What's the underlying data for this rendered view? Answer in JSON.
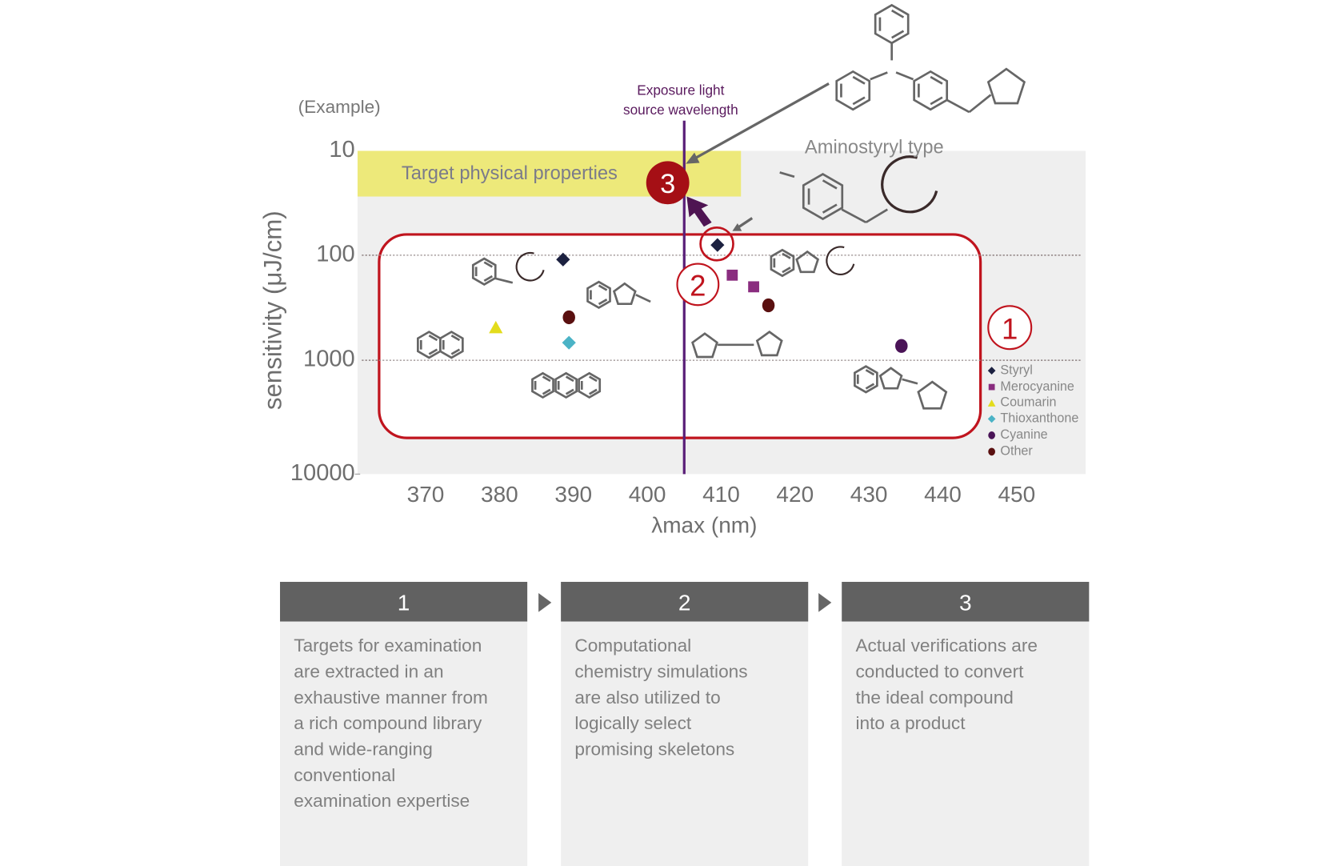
{
  "header": {
    "example_label": "(Example)"
  },
  "chart_data": {
    "type": "scatter",
    "title": "",
    "xlabel": "λmax (nm)",
    "ylabel": "sensitivity (μJ/cm)",
    "x_ticks": [
      "370",
      "380",
      "390",
      "400",
      "410",
      "420",
      "430",
      "440",
      "450"
    ],
    "y_ticks": [
      "10",
      "100",
      "1000",
      "10000"
    ],
    "y_scale": "log",
    "y_inverted": true,
    "ylim": [
      10,
      10000
    ],
    "grid": "dotted horizontal lines at 100 and 1000",
    "legend_position": "right",
    "series": [
      {
        "name": "Styryl",
        "marker": "diamond",
        "color": "#1c2140",
        "points": [
          [
            388.6,
            110
          ],
          [
            409.5,
            80
          ]
        ]
      },
      {
        "name": "Merocyanine",
        "marker": "square",
        "color": "#8a2d7f",
        "points": [
          [
            411.5,
            155
          ],
          [
            414.4,
            200
          ]
        ]
      },
      {
        "name": "Coumarin",
        "marker": "triangle",
        "color": "#e3dc1c",
        "points": [
          [
            379.5,
            490
          ]
        ]
      },
      {
        "name": "Thioxanthone",
        "marker": "diamond",
        "color": "#4bb3c6",
        "points": [
          [
            389.4,
            680
          ]
        ]
      },
      {
        "name": "Cyanine",
        "marker": "circle",
        "color": "#4a1457",
        "points": [
          [
            434.4,
            730
          ]
        ]
      },
      {
        "name": "Other",
        "marker": "circle",
        "color": "#5a1010",
        "points": [
          [
            389.4,
            390
          ],
          [
            416.4,
            300
          ]
        ]
      }
    ],
    "annotations": {
      "exposure_wavelength_nm": 405,
      "exposure_label": "Exposure light\nsource wavelength",
      "target_band_label": "Target physical properties",
      "target_band_sensitivity": [
        10,
        27
      ],
      "structure_caption": "Aminostyryl type",
      "step_markers": [
        "1",
        "2",
        "3"
      ]
    },
    "colors": {
      "target_band": "#ede97a",
      "candidate_frame": "#c0141e",
      "exposure_line": "#5a1f78",
      "plot_bg": "#efefef"
    }
  },
  "steps": [
    {
      "number": "1",
      "text": "Targets for examination\nare extracted in an\nexhaustive manner from\na rich compound library\nand wide-ranging\nconventional\nexamination expertise"
    },
    {
      "number": "2",
      "text": "Computational\nchemistry simulations\nare also utilized to\nlogically select\npromising skeletons"
    },
    {
      "number": "3",
      "text": "Actual verifications are\nconducted to convert\nthe ideal compound\ninto a product"
    }
  ]
}
